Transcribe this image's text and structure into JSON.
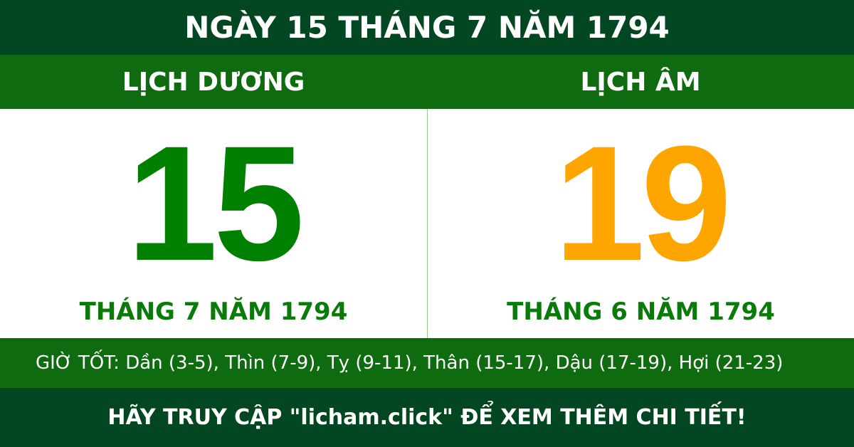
{
  "title": "NGÀY 15 THÁNG 7 NĂM 1794",
  "solar": {
    "heading": "LỊCH DƯƠNG",
    "day": "15",
    "month_year": "THÁNG 7 NĂM 1794",
    "color": "#008000"
  },
  "lunar": {
    "heading": "LỊCH ÂM",
    "day": "19",
    "month_year": "THÁNG 6 NĂM 1794",
    "color": "#ffa500"
  },
  "good_hours": "GIỜ TỐT: Dần (3-5), Thìn (7-9), Tỵ (9-11), Thân (15-17), Dậu (17-19), Hợi (21-23)",
  "footer": "HÃY TRUY CẬP \"licham.click\" ĐỂ XEM THÊM CHI TIẾT!",
  "colors": {
    "dark_green": "#034722",
    "green": "#0f6b0f"
  }
}
